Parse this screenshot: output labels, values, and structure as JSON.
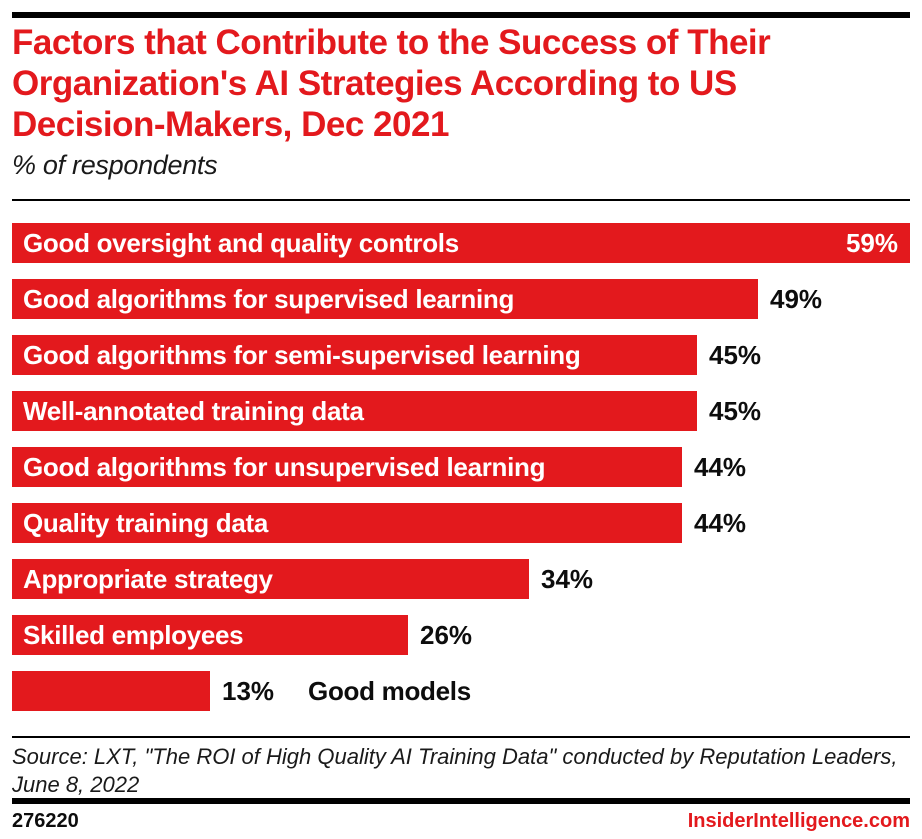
{
  "header": {
    "title": "Factors that Contribute to the Success of Their Organization's AI Strategies According to US Decision-Makers, Dec 2021",
    "title_lines": [
      "Factors that Contribute to the Success of Their",
      "Organization's AI Strategies According to US",
      "Decision-Makers, Dec 2021"
    ],
    "subtitle": "% of respondents"
  },
  "chart_data": {
    "type": "bar",
    "orientation": "horizontal",
    "title": "Factors that Contribute to the Success of Their Organization's AI Strategies According to US Decision-Makers, Dec 2021",
    "subtitle": "% of respondents",
    "unit": "%",
    "xlabel": "",
    "ylabel": "",
    "xlim": [
      0,
      59
    ],
    "grid": false,
    "legend": false,
    "bar_color": "#e3191d",
    "categories": [
      "Good oversight and quality controls",
      "Good algorithms for supervised learning",
      "Good algorithms for semi-supervised learning",
      "Well-annotated training data",
      "Good algorithms for unsupervised learning",
      "Quality training data",
      "Appropriate strategy",
      "Skilled employees",
      "Good models"
    ],
    "values": [
      59,
      49,
      45,
      45,
      44,
      44,
      34,
      26,
      13
    ],
    "items": [
      {
        "label": "Good oversight and quality controls",
        "value": 59,
        "display": "59%",
        "label_position": "inside",
        "value_position": "inside"
      },
      {
        "label": "Good algorithms for supervised learning",
        "value": 49,
        "display": "49%",
        "label_position": "inside",
        "value_position": "outside"
      },
      {
        "label": "Good algorithms for semi-supervised learning",
        "value": 45,
        "display": "45%",
        "label_position": "inside",
        "value_position": "outside"
      },
      {
        "label": "Well-annotated training data",
        "value": 45,
        "display": "45%",
        "label_position": "inside",
        "value_position": "outside"
      },
      {
        "label": "Good algorithms for unsupervised learning",
        "value": 44,
        "display": "44%",
        "label_position": "inside",
        "value_position": "outside"
      },
      {
        "label": "Quality training data",
        "value": 44,
        "display": "44%",
        "label_position": "inside",
        "value_position": "outside"
      },
      {
        "label": "Appropriate strategy",
        "value": 34,
        "display": "34%",
        "label_position": "inside",
        "value_position": "outside"
      },
      {
        "label": "Skilled employees",
        "value": 26,
        "display": "26%",
        "label_position": "inside",
        "value_position": "outside"
      },
      {
        "label": "Good models",
        "value": 13,
        "display": "13%",
        "label_position": "outside",
        "value_position": "outside"
      }
    ]
  },
  "footer": {
    "source": "Source: LXT, \"The ROI of High Quality AI Training Data\" conducted by Reputation Leaders, June 8, 2022",
    "chart_id": "276220",
    "brand": "InsiderIntelligence.com"
  },
  "colors": {
    "accent_red": "#e3191d",
    "text_black": "#0d0d0d",
    "bar_label_white": "#ffffff",
    "rule_black": "#000000"
  }
}
